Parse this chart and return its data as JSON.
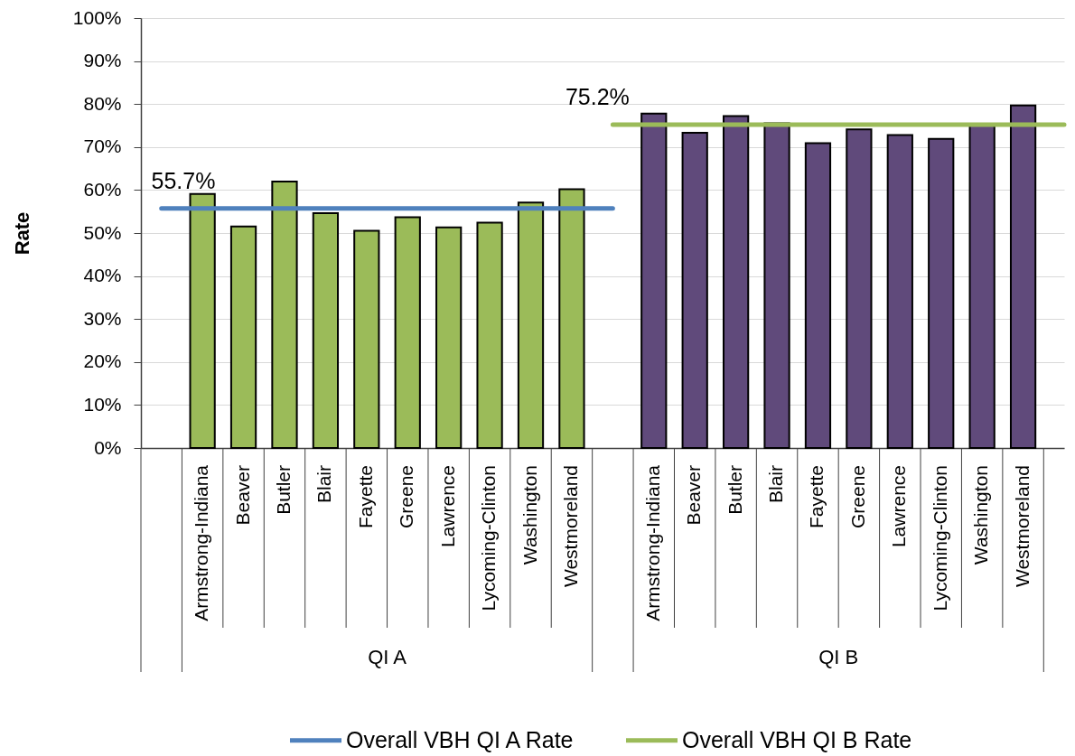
{
  "chart_data": {
    "type": "bar",
    "ylabel": "Rate",
    "categories": [
      null,
      "Armstrong-Indiana",
      "Beaver",
      "Butler",
      "Blair",
      "Fayette",
      "Greene",
      "Lawrence",
      "Lycoming-Clinton",
      "Washington",
      "Westmoreland",
      null,
      "Armstrong-Indiana",
      "Beaver",
      "Butler",
      "Blair",
      "Fayette",
      "Greene",
      "Lawrence",
      "Lycoming-Clinton",
      "Washington",
      "Westmoreland",
      null
    ],
    "series": [
      {
        "color": "#9bbb59",
        "values": [
          null,
          59.1,
          51.5,
          62.0,
          54.6,
          50.5,
          53.7,
          51.3,
          52.4,
          57.1,
          60.2,
          null,
          null,
          null,
          null,
          null,
          null,
          null,
          null,
          null,
          null,
          null,
          null
        ]
      },
      {
        "color": "#604a7b",
        "values": [
          null,
          null,
          null,
          null,
          null,
          null,
          null,
          null,
          null,
          null,
          null,
          null,
          77.8,
          73.3,
          77.2,
          75.5,
          70.9,
          74.1,
          72.8,
          71.9,
          75.4,
          79.7,
          null
        ]
      },
      {
        "name": "Overall VBH QI A Rate",
        "type": "line",
        "color": "#4f81bd",
        "values": [
          55.7,
          55.7,
          55.7,
          55.7,
          55.7,
          55.7,
          55.7,
          55.7,
          55.7,
          55.7,
          55.7,
          55.7,
          null,
          null,
          null,
          null,
          null,
          null,
          null,
          null,
          null,
          null,
          null
        ],
        "value_labels": [
          "55.7%",
          null,
          null,
          null,
          null,
          null,
          null,
          null,
          null,
          null,
          null,
          null,
          null,
          null,
          null,
          null,
          null,
          null,
          null,
          null,
          null,
          null,
          null
        ]
      },
      {
        "name": "Overall VBH QI B Rate",
        "type": "line",
        "color": "#9bbb59",
        "values": [
          null,
          null,
          null,
          null,
          null,
          null,
          null,
          null,
          null,
          null,
          null,
          75.2,
          75.2,
          75.2,
          75.2,
          75.2,
          75.2,
          75.2,
          75.2,
          75.2,
          75.2,
          75.2,
          75.2
        ],
        "value_labels": [
          null,
          null,
          null,
          null,
          null,
          null,
          null,
          null,
          null,
          null,
          null,
          "75.2%",
          null,
          null,
          null,
          null,
          null,
          null,
          null,
          null,
          null,
          null,
          null
        ]
      }
    ],
    "annotations": [
      "QI A",
      "QI B"
    ],
    "ylim": [
      0,
      100
    ],
    "yticks": [
      {
        "value": 0,
        "label": "0%"
      },
      {
        "value": 10,
        "label": "10%"
      },
      {
        "value": 20,
        "label": "20%"
      },
      {
        "value": 30,
        "label": "30%"
      },
      {
        "value": 40,
        "label": "40%"
      },
      {
        "value": 50,
        "label": "50%"
      },
      {
        "value": 60,
        "label": "60%"
      },
      {
        "value": 70,
        "label": "70%"
      },
      {
        "value": 80,
        "label": "80%"
      },
      {
        "value": 90,
        "label": "90%"
      },
      {
        "value": 100,
        "label": "100%"
      }
    ],
    "grid": "y",
    "legend": "bottom"
  }
}
